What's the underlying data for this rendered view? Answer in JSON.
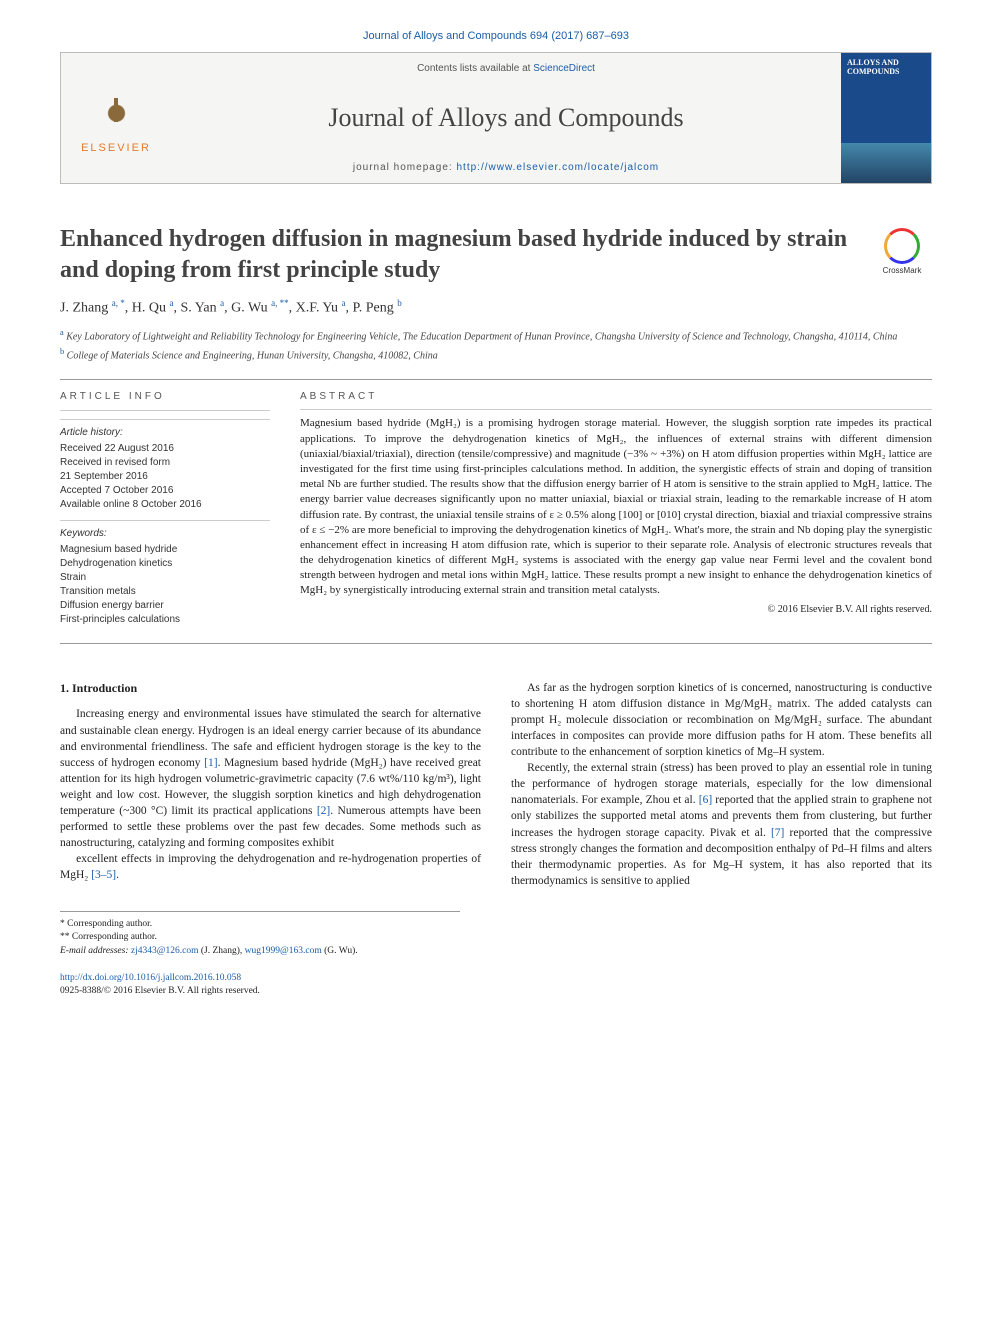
{
  "journal_ref": "Journal of Alloys and Compounds 694 (2017) 687–693",
  "masthead": {
    "publisher": "ELSEVIER",
    "contents_prefix": "Contents lists available at ",
    "contents_link": "ScienceDirect",
    "journal_title": "Journal of Alloys and Compounds",
    "homepage_prefix": "journal homepage: ",
    "homepage_url": "http://www.elsevier.com/locate/jalcom",
    "cover_title": "ALLOYS AND COMPOUNDS"
  },
  "crossmark_label": "CrossMark",
  "title": "Enhanced hydrogen diffusion in magnesium based hydride induced by strain and doping from first principle study",
  "authors_html": "J. Zhang <sup>a, *</sup>, H. Qu <sup>a</sup>, S. Yan <sup>a</sup>, G. Wu <sup>a, **</sup>, X.F. Yu <sup>a</sup>, P. Peng <sup>b</sup>",
  "affiliations": [
    {
      "sup": "a",
      "text": "Key Laboratory of Lightweight and Reliability Technology for Engineering Vehicle, The Education Department of Hunan Province, Changsha University of Science and Technology, Changsha, 410114, China"
    },
    {
      "sup": "b",
      "text": "College of Materials Science and Engineering, Hunan University, Changsha, 410082, China"
    }
  ],
  "article_info": {
    "heading": "ARTICLE INFO",
    "history_label": "Article history:",
    "history": [
      "Received 22 August 2016",
      "Received in revised form",
      "21 September 2016",
      "Accepted 7 October 2016",
      "Available online 8 October 2016"
    ],
    "keywords_label": "Keywords:",
    "keywords": [
      "Magnesium based hydride",
      "Dehydrogenation kinetics",
      "Strain",
      "Transition metals",
      "Diffusion energy barrier",
      "First-principles calculations"
    ]
  },
  "abstract": {
    "heading": "ABSTRACT",
    "text": "Magnesium based hydride (MgH₂) is a promising hydrogen storage material. However, the sluggish sorption rate impedes its practical applications. To improve the dehydrogenation kinetics of MgH₂, the influences of external strains with different dimension (uniaxial/biaxial/triaxial), direction (tensile/compressive) and magnitude (−3% ~ +3%) on H atom diffusion properties within MgH₂ lattice are investigated for the first time using first-principles calculations method. In addition, the synergistic effects of strain and doping of transition metal Nb are further studied. The results show that the diffusion energy barrier of H atom is sensitive to the strain applied to MgH₂ lattice. The energy barrier value decreases significantly upon no matter uniaxial, biaxial or triaxial strain, leading to the remarkable increase of H atom diffusion rate. By contrast, the uniaxial tensile strains of ε ≥ 0.5% along [100] or [010] crystal direction, biaxial and triaxial compressive strains of ε ≤ −2% are more beneficial to improving the dehydrogenation kinetics of MgH₂. What's more, the strain and Nb doping play the synergistic enhancement effect in increasing H atom diffusion rate, which is superior to their separate role. Analysis of electronic structures reveals that the dehydrogenation kinetics of different MgH₂ systems is associated with the energy gap value near Fermi level and the covalent bond strength between hydrogen and metal ions within MgH₂ lattice. These results prompt a new insight to enhance the dehydrogenation kinetics of MgH₂ by synergistically introducing external strain and transition metal catalysts.",
    "copyright": "© 2016 Elsevier B.V. All rights reserved."
  },
  "section1": {
    "heading": "1. Introduction",
    "p1": "Increasing energy and environmental issues have stimulated the search for alternative and sustainable clean energy. Hydrogen is an ideal energy carrier because of its abundance and environmental friendliness. The safe and efficient hydrogen storage is the key to the success of hydrogen economy [1]. Magnesium based hydride (MgH₂) have received great attention for its high hydrogen volumetric-gravimetric capacity (7.6 wt%/110 kg/m³), light weight and low cost. However, the sluggish sorption kinetics and high dehydrogenation temperature (~300 °C) limit its practical applications [2]. Numerous attempts have been performed to settle these problems over the past few decades. Some methods such as nanostructuring, catalyzing and forming composites exhibit",
    "p2": "excellent effects in improving the dehydrogenation and re-hydrogenation properties of MgH₂ [3–5].",
    "p3": "As far as the hydrogen sorption kinetics of is concerned, nanostructuring is conductive to shortening H atom diffusion distance in Mg/MgH₂ matrix. The added catalysts can prompt H₂ molecule dissociation or recombination on Mg/MgH₂ surface. The abundant interfaces in composites can provide more diffusion paths for H atom. These benefits all contribute to the enhancement of sorption kinetics of Mg–H system.",
    "p4": "Recently, the external strain (stress) has been proved to play an essential role in tuning the performance of hydrogen storage materials, especially for the low dimensional nanomaterials. For example, Zhou et al. [6] reported that the applied strain to graphene not only stabilizes the supported metal atoms and prevents them from clustering, but further increases the hydrogen storage capacity. Pivak et al. [7] reported that the compressive stress strongly changes the formation and decomposition enthalpy of Pd–H films and alters their thermodynamic properties. As for Mg–H system, it has also reported that its thermodynamics is sensitive to applied"
  },
  "footnotes": {
    "corr1": "* Corresponding author.",
    "corr2": "** Corresponding author.",
    "email_label": "E-mail addresses:",
    "email1": "zj4343@126.com",
    "email1_who": " (J. Zhang), ",
    "email2": "wug1999@163.com",
    "email2_who": " (G. Wu)."
  },
  "doi": {
    "url": "http://dx.doi.org/10.1016/j.jallcom.2016.10.058",
    "issn_line": "0925-8388/© 2016 Elsevier B.V. All rights reserved."
  },
  "colors": {
    "link": "#1a5da8",
    "publisher_orange": "#e77a2b",
    "cover_blue": "#1a4a8a"
  }
}
